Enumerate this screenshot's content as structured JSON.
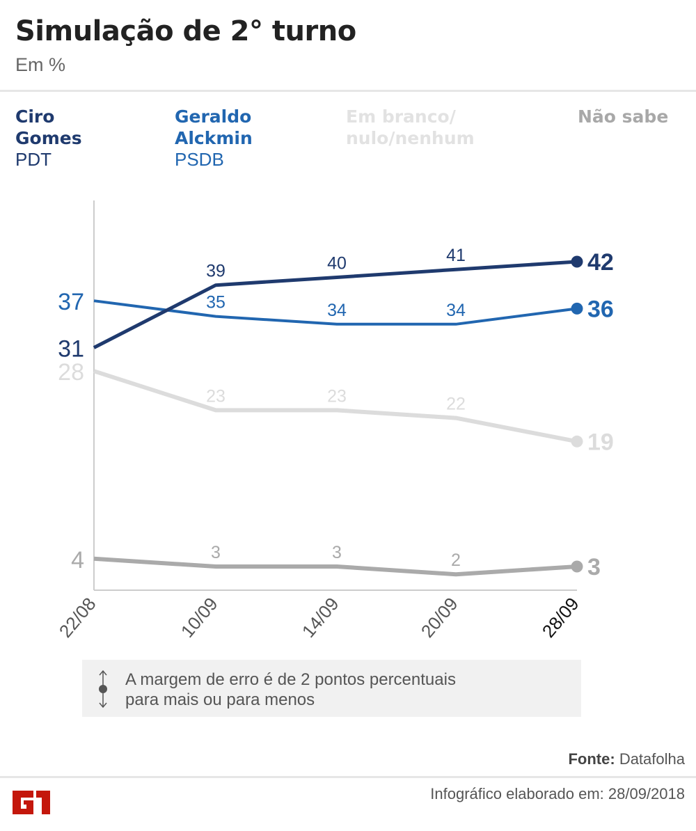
{
  "header": {
    "title": "Simulação de 2° turno",
    "subtitle": "Em %"
  },
  "legend": [
    {
      "name_line1": "Ciro",
      "name_line2": "Gomes",
      "party": "PDT",
      "color": "#1f3a6e"
    },
    {
      "name_line1": "Geraldo",
      "name_line2": "Alckmin",
      "party": "PSDB",
      "color": "#2166b0"
    },
    {
      "name_line1": "Em branco/",
      "name_line2": "nulo/nenhum",
      "party": "",
      "color": "#dcdcdc"
    },
    {
      "name_line1": "Não sabe",
      "name_line2": "",
      "party": "",
      "color": "#aaaaaa"
    }
  ],
  "chart_data": {
    "type": "line",
    "title": "Simulação de 2° turno",
    "subtitle": "Em %",
    "xlabel": "",
    "ylabel": "",
    "categories": [
      "22/08",
      "10/09",
      "14/09",
      "20/09",
      "28/09"
    ],
    "ylim": [
      0,
      45
    ],
    "grid": false,
    "legend_placement": "top",
    "series": [
      {
        "name": "Ciro Gomes (PDT)",
        "color": "#1f3a6e",
        "values": [
          31,
          39,
          40,
          41,
          42
        ]
      },
      {
        "name": "Geraldo Alckmin (PSDB)",
        "color": "#2166b0",
        "values": [
          37,
          35,
          34,
          34,
          36
        ]
      },
      {
        "name": "Em branco/nulo/nenhum",
        "color": "#dcdcdc",
        "values": [
          28,
          23,
          23,
          22,
          19
        ]
      },
      {
        "name": "Não sabe",
        "color": "#aaaaaa",
        "values": [
          4,
          3,
          3,
          2,
          3
        ]
      }
    ]
  },
  "note": {
    "line1": "A margem de erro é de 2 pontos percentuais",
    "line2": "para mais ou para menos"
  },
  "footer": {
    "source_label": "Fonte:",
    "source_value": "Datafolha",
    "credit": "Infográfico elaborado em: 28/09/2018",
    "logo_text": "G1",
    "logo_color": "#c4170c"
  }
}
